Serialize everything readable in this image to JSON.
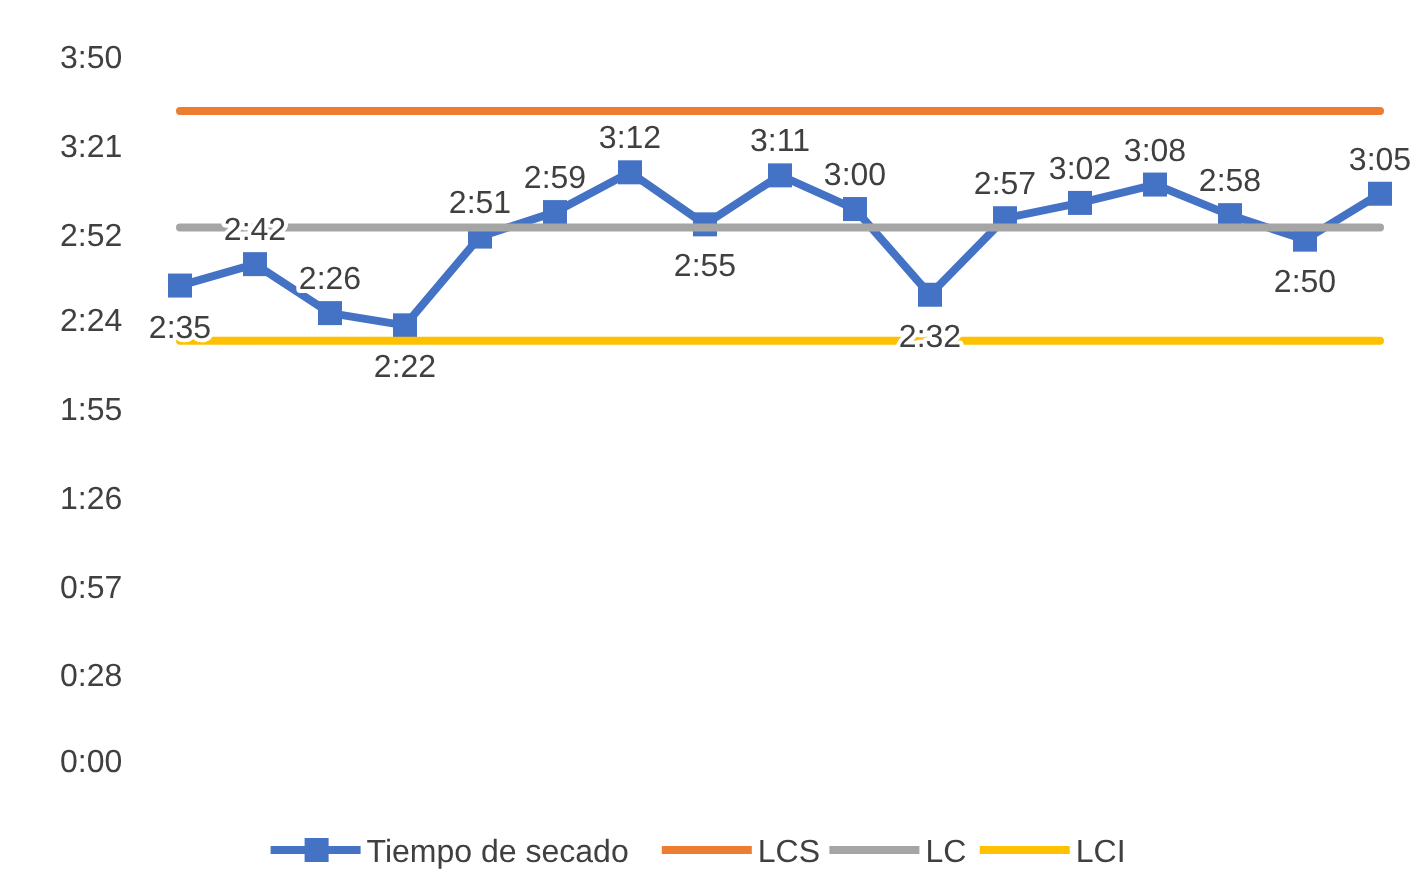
{
  "chart_data": {
    "type": "line",
    "categories": [
      null,
      null,
      null,
      null,
      null,
      null,
      null,
      null,
      null,
      null,
      null,
      null,
      null,
      null,
      null,
      null,
      null
    ],
    "ylim": [
      0,
      230
    ],
    "yticks": [
      {
        "value": 0,
        "label": "0:00"
      },
      {
        "value": 28,
        "label": "0:28"
      },
      {
        "value": 57,
        "label": "0:57"
      },
      {
        "value": 86,
        "label": "1:26"
      },
      {
        "value": 115,
        "label": "1:55"
      },
      {
        "value": 144,
        "label": "2:24"
      },
      {
        "value": 172,
        "label": "2:52"
      },
      {
        "value": 201,
        "label": "3:21"
      },
      {
        "value": 230,
        "label": "3:50"
      }
    ],
    "series": [
      {
        "name": "Tiempo de secado",
        "color": "#4472c4",
        "marker": "square",
        "values": [
          155,
          162,
          146,
          142,
          171,
          179,
          192,
          175,
          191,
          180,
          152,
          177,
          182,
          188,
          178,
          170,
          185
        ],
        "value_labels": [
          "2:35",
          "2:42",
          "2:26",
          "2:22",
          "2:51",
          "2:59",
          "3:12",
          "2:55",
          "3:11",
          "3:00",
          "2:32",
          "2:57",
          "3:02",
          "3:08",
          "2:58",
          "2:50",
          "3:05"
        ]
      },
      {
        "name": "LCS",
        "color": "#ed7d31",
        "marker": "none",
        "values": [
          212,
          212,
          212,
          212,
          212,
          212,
          212,
          212,
          212,
          212,
          212,
          212,
          212,
          212,
          212,
          212,
          212
        ]
      },
      {
        "name": "LC",
        "color": "#a5a5a5",
        "marker": "none",
        "values": [
          174,
          174,
          174,
          174,
          174,
          174,
          174,
          174,
          174,
          174,
          174,
          174,
          174,
          174,
          174,
          174,
          174
        ]
      },
      {
        "name": "LCI",
        "color": "#ffc000",
        "marker": "none",
        "values": [
          137,
          137,
          137,
          137,
          137,
          137,
          137,
          137,
          137,
          137,
          137,
          137,
          137,
          137,
          137,
          137,
          137
        ]
      }
    ],
    "grid": false,
    "legend": "bottom"
  }
}
